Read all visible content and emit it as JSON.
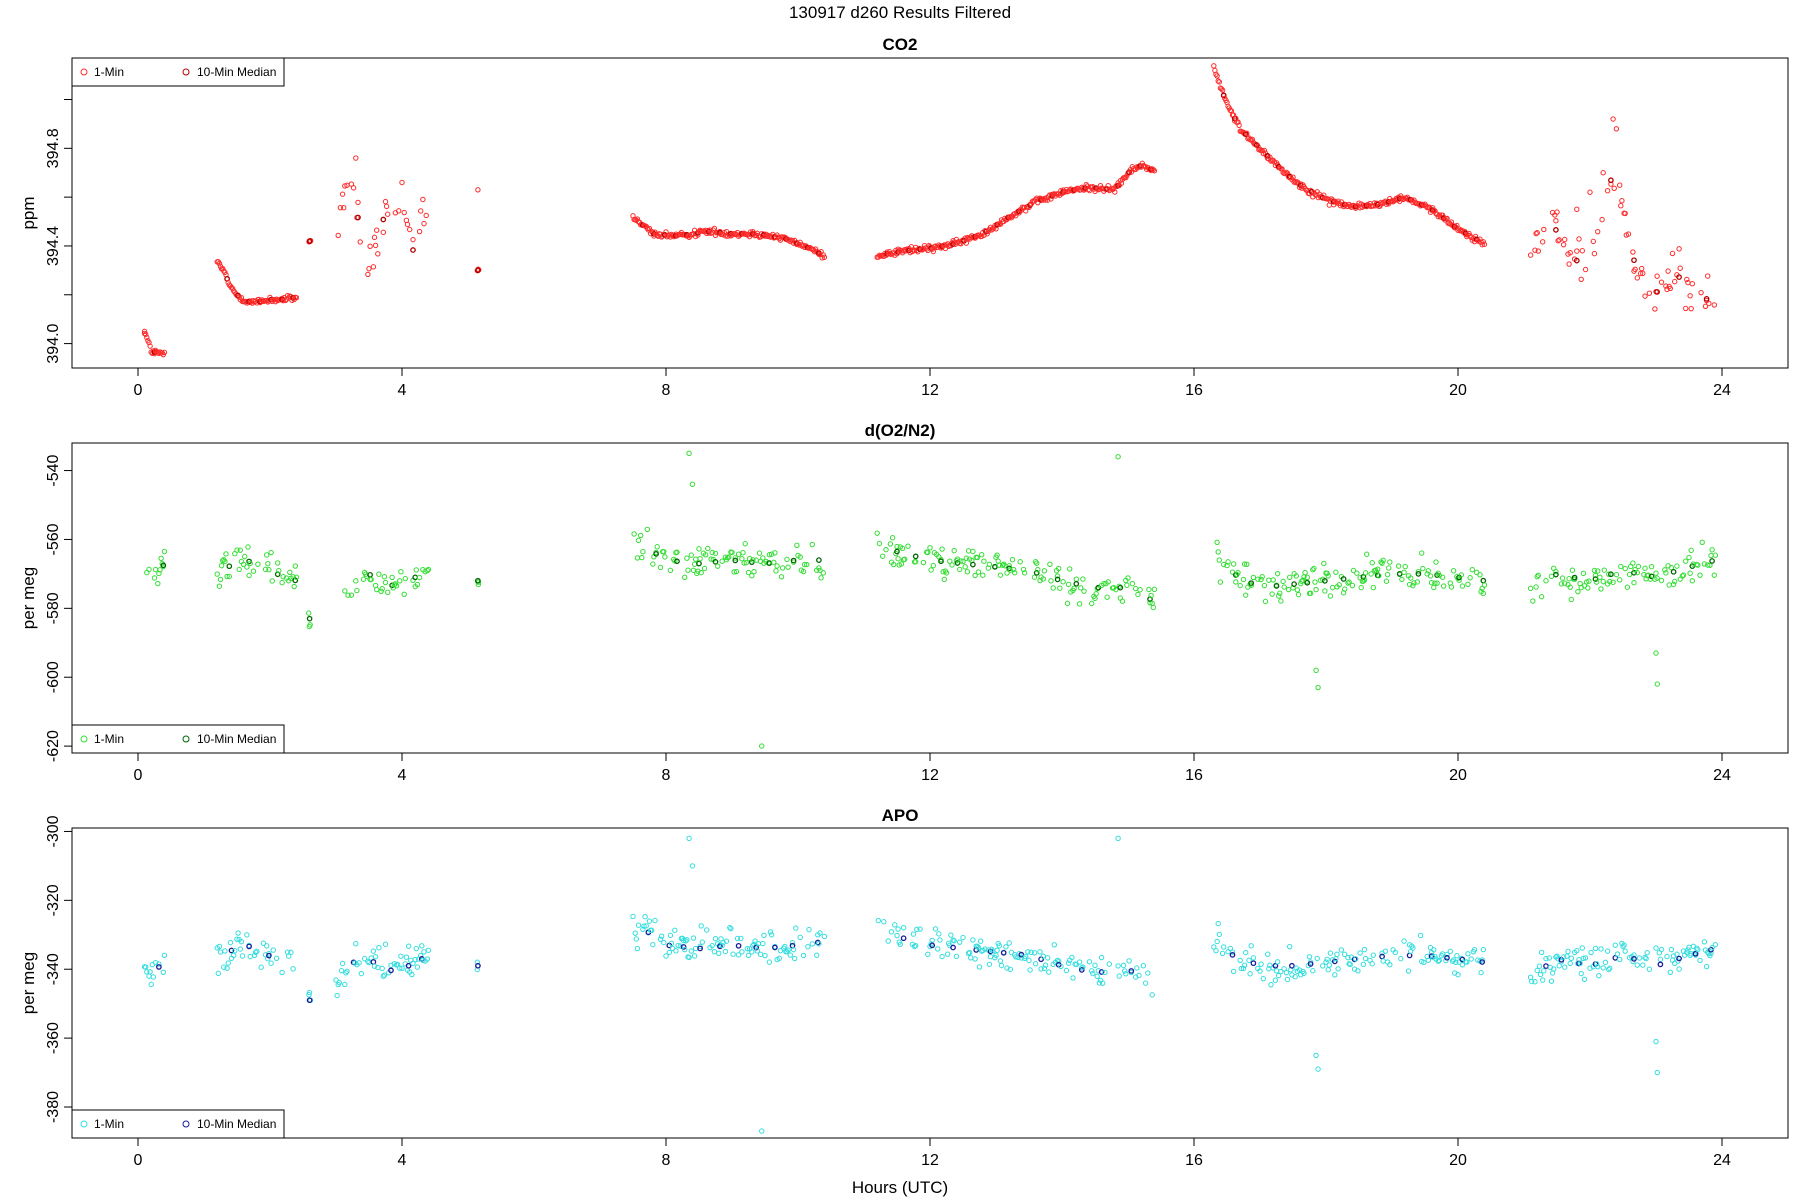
{
  "page_title": "130917   d260   Results Filtered",
  "x_axis_label": "Hours (UTC)",
  "colors": {
    "co2_1min": "#ff2a2a",
    "co2_median": "#b00000",
    "o2_1min": "#33dd33",
    "o2_median": "#006600",
    "apo_1min": "#33dddd",
    "apo_median": "#1a1a99"
  },
  "chart_data": [
    {
      "type": "scatter",
      "title": "CO2",
      "xlabel": "",
      "ylabel": "ppm",
      "xlim": [
        -1,
        25
      ],
      "ylim": [
        393.9,
        395.17
      ],
      "x_ticks": [
        0,
        4,
        8,
        12,
        16,
        20,
        24
      ],
      "y_ticks": [
        394.0,
        394.4,
        394.8
      ],
      "y_tick_labels": [
        "394.0",
        "394.4",
        "394.8"
      ],
      "legend": {
        "position": "top-left",
        "entries": [
          "1-Min",
          "10-Min Median"
        ]
      },
      "segments": [
        {
          "x": [
            0.1,
            0.2,
            0.3,
            0.4
          ],
          "y": [
            394.05,
            393.97,
            393.96,
            393.96
          ]
        },
        {
          "x": [
            1.2,
            1.3,
            1.4,
            1.5,
            1.6,
            1.7,
            1.8,
            2.0,
            2.2,
            2.4
          ],
          "y": [
            394.33,
            394.3,
            394.23,
            394.2,
            394.18,
            394.17,
            394.17,
            394.18,
            394.18,
            394.19
          ]
        },
        {
          "x": [
            2.6
          ],
          "y": [
            394.42
          ]
        },
        {
          "x": [
            3.0,
            3.2,
            3.3,
            3.4,
            3.5,
            3.7,
            3.8,
            4.0,
            4.1,
            4.2,
            4.3,
            4.4
          ],
          "y": [
            394.45,
            394.7,
            394.6,
            394.35,
            394.3,
            394.5,
            394.55,
            394.5,
            394.45,
            394.35,
            394.55,
            394.45
          ]
        },
        {
          "x": [
            5.15
          ],
          "y": [
            394.3
          ]
        },
        {
          "x": [
            7.5,
            7.8,
            8.2,
            8.6,
            9.0,
            9.4,
            9.8,
            10.1,
            10.4
          ],
          "y": [
            394.52,
            394.45,
            394.44,
            394.46,
            394.45,
            394.45,
            394.43,
            394.4,
            394.36
          ]
        },
        {
          "x": [
            11.2,
            11.6,
            12.0,
            12.4,
            12.8,
            13.2,
            13.6,
            14.0,
            14.4,
            14.8,
            15.0,
            15.2,
            15.4
          ],
          "y": [
            394.36,
            394.38,
            394.39,
            394.41,
            394.45,
            394.52,
            394.58,
            394.62,
            394.64,
            394.63,
            394.7,
            394.73,
            394.71
          ]
        },
        {
          "x": [
            16.3,
            16.5,
            16.7,
            17.0,
            17.3,
            17.6,
            18.0,
            18.4,
            18.8,
            19.2,
            19.6,
            20.0,
            20.4
          ],
          "y": [
            395.13,
            394.98,
            394.88,
            394.8,
            394.72,
            394.65,
            394.59,
            394.56,
            394.57,
            394.6,
            394.55,
            394.47,
            394.41
          ]
        },
        {
          "x": [
            21.1,
            21.3,
            21.5,
            21.7,
            21.9,
            22.1,
            22.3,
            22.5,
            22.7,
            22.9,
            23.1,
            23.3,
            23.5,
            23.7,
            23.9
          ],
          "y": [
            394.37,
            394.42,
            394.47,
            394.38,
            394.3,
            394.45,
            394.68,
            394.55,
            394.3,
            394.2,
            394.22,
            394.28,
            394.25,
            394.18,
            394.19
          ]
        }
      ],
      "outliers": {
        "x": [
          0.1,
          3.3,
          4.0,
          5.15,
          22.35,
          22.4,
          21.8,
          22.0,
          22.2
        ],
        "y": [
          394.05,
          394.76,
          394.66,
          394.63,
          394.92,
          394.88,
          394.55,
          394.62,
          394.7
        ]
      }
    },
    {
      "type": "scatter",
      "title": "d(O2/N2)",
      "xlabel": "",
      "ylabel": "per meg",
      "xlim": [
        -1,
        25
      ],
      "ylim": [
        -622,
        -532
      ],
      "x_ticks": [
        0,
        4,
        8,
        12,
        16,
        20,
        24
      ],
      "y_ticks": [
        -540,
        -560,
        -580,
        -600,
        -620
      ],
      "y_tick_labels": [
        "-540",
        "-560",
        "-580",
        "-600",
        "-620"
      ],
      "legend": {
        "position": "bottom-left",
        "entries": [
          "1-Min",
          "10-Min Median"
        ]
      },
      "segments": [
        {
          "x": [
            0.1,
            0.2,
            0.3,
            0.4
          ],
          "y": [
            -568,
            -572,
            -570,
            -567
          ]
        },
        {
          "x": [
            1.2,
            1.5,
            1.8,
            2.1,
            2.4
          ],
          "y": [
            -569,
            -567,
            -566,
            -570,
            -572
          ]
        },
        {
          "x": [
            2.6
          ],
          "y": [
            -583
          ]
        },
        {
          "x": [
            3.0,
            3.3,
            3.6,
            3.9,
            4.2,
            4.4
          ],
          "y": [
            -580,
            -571,
            -570,
            -574,
            -571,
            -568
          ]
        },
        {
          "x": [
            5.15
          ],
          "y": [
            -572
          ]
        },
        {
          "x": [
            7.5,
            8.0,
            8.5,
            9.0,
            9.5,
            10.0,
            10.4
          ],
          "y": [
            -560,
            -566,
            -567,
            -566,
            -567,
            -566,
            -566
          ]
        },
        {
          "x": [
            11.2,
            11.6,
            12.0,
            12.5,
            13.0,
            13.5,
            14.0,
            14.5,
            15.0,
            15.4
          ],
          "y": [
            -562,
            -564,
            -566,
            -567,
            -568,
            -569,
            -572,
            -574,
            -574,
            -578
          ]
        },
        {
          "x": [
            16.3,
            16.6,
            17.0,
            17.5,
            18.0,
            18.5,
            19.0,
            19.5,
            20.0,
            20.4
          ],
          "y": [
            -565,
            -570,
            -574,
            -573,
            -572,
            -571,
            -570,
            -570,
            -571,
            -572
          ]
        },
        {
          "x": [
            21.1,
            21.5,
            22.0,
            22.5,
            23.0,
            23.5,
            23.9
          ],
          "y": [
            -575,
            -570,
            -572,
            -569,
            -571,
            -568,
            -566
          ]
        }
      ],
      "outliers": {
        "x": [
          8.35,
          8.4,
          9.45,
          14.85,
          17.85,
          17.88,
          23.0,
          23.02
        ],
        "y": [
          -535,
          -544,
          -620,
          -536,
          -598,
          -603,
          -593,
          -602
        ]
      }
    },
    {
      "type": "scatter",
      "title": "APO",
      "xlabel": "Hours (UTC)",
      "ylabel": "per meg",
      "xlim": [
        -1,
        25
      ],
      "ylim": [
        -389,
        -299
      ],
      "x_ticks": [
        0,
        4,
        8,
        12,
        16,
        20,
        24
      ],
      "y_ticks": [
        -300,
        -320,
        -340,
        -360,
        -380
      ],
      "y_tick_labels": [
        "-300",
        "-320",
        "-340",
        "-360",
        "-380"
      ],
      "legend": {
        "position": "bottom-left",
        "entries": [
          "1-Min",
          "10-Min Median"
        ]
      },
      "segments": [
        {
          "x": [
            0.1,
            0.2,
            0.3,
            0.4
          ],
          "y": [
            -336,
            -342,
            -340,
            -336
          ]
        },
        {
          "x": [
            1.2,
            1.5,
            1.8,
            2.1,
            2.4
          ],
          "y": [
            -336,
            -334,
            -333,
            -338,
            -340
          ]
        },
        {
          "x": [
            2.6
          ],
          "y": [
            -349
          ]
        },
        {
          "x": [
            3.0,
            3.3,
            3.6,
            3.9,
            4.2,
            4.4
          ],
          "y": [
            -346,
            -337,
            -338,
            -341,
            -338,
            -336
          ]
        },
        {
          "x": [
            5.15
          ],
          "y": [
            -339
          ]
        },
        {
          "x": [
            7.5,
            8.0,
            8.5,
            9.0,
            9.5,
            10.0,
            10.4
          ],
          "y": [
            -326,
            -333,
            -334,
            -333,
            -334,
            -333,
            -332
          ]
        },
        {
          "x": [
            11.2,
            11.6,
            12.0,
            12.5,
            13.0,
            13.5,
            14.0,
            14.5,
            15.0,
            15.4
          ],
          "y": [
            -328,
            -331,
            -333,
            -334,
            -335,
            -336,
            -339,
            -341,
            -340,
            -344
          ]
        },
        {
          "x": [
            16.3,
            16.6,
            17.0,
            17.5,
            18.0,
            18.5,
            19.0,
            19.5,
            20.0,
            20.4
          ],
          "y": [
            -333,
            -336,
            -339,
            -339,
            -338,
            -337,
            -336,
            -336,
            -337,
            -338
          ]
        },
        {
          "x": [
            21.1,
            21.5,
            22.0,
            22.5,
            23.0,
            23.5,
            23.9
          ],
          "y": [
            -342,
            -337,
            -339,
            -336,
            -339,
            -336,
            -334
          ]
        }
      ],
      "outliers": {
        "x": [
          8.35,
          8.4,
          9.45,
          14.85,
          17.85,
          17.88,
          23.0,
          23.02
        ],
        "y": [
          -302,
          -310,
          -387,
          -302,
          -365,
          -369,
          -361,
          -370
        ]
      }
    }
  ]
}
